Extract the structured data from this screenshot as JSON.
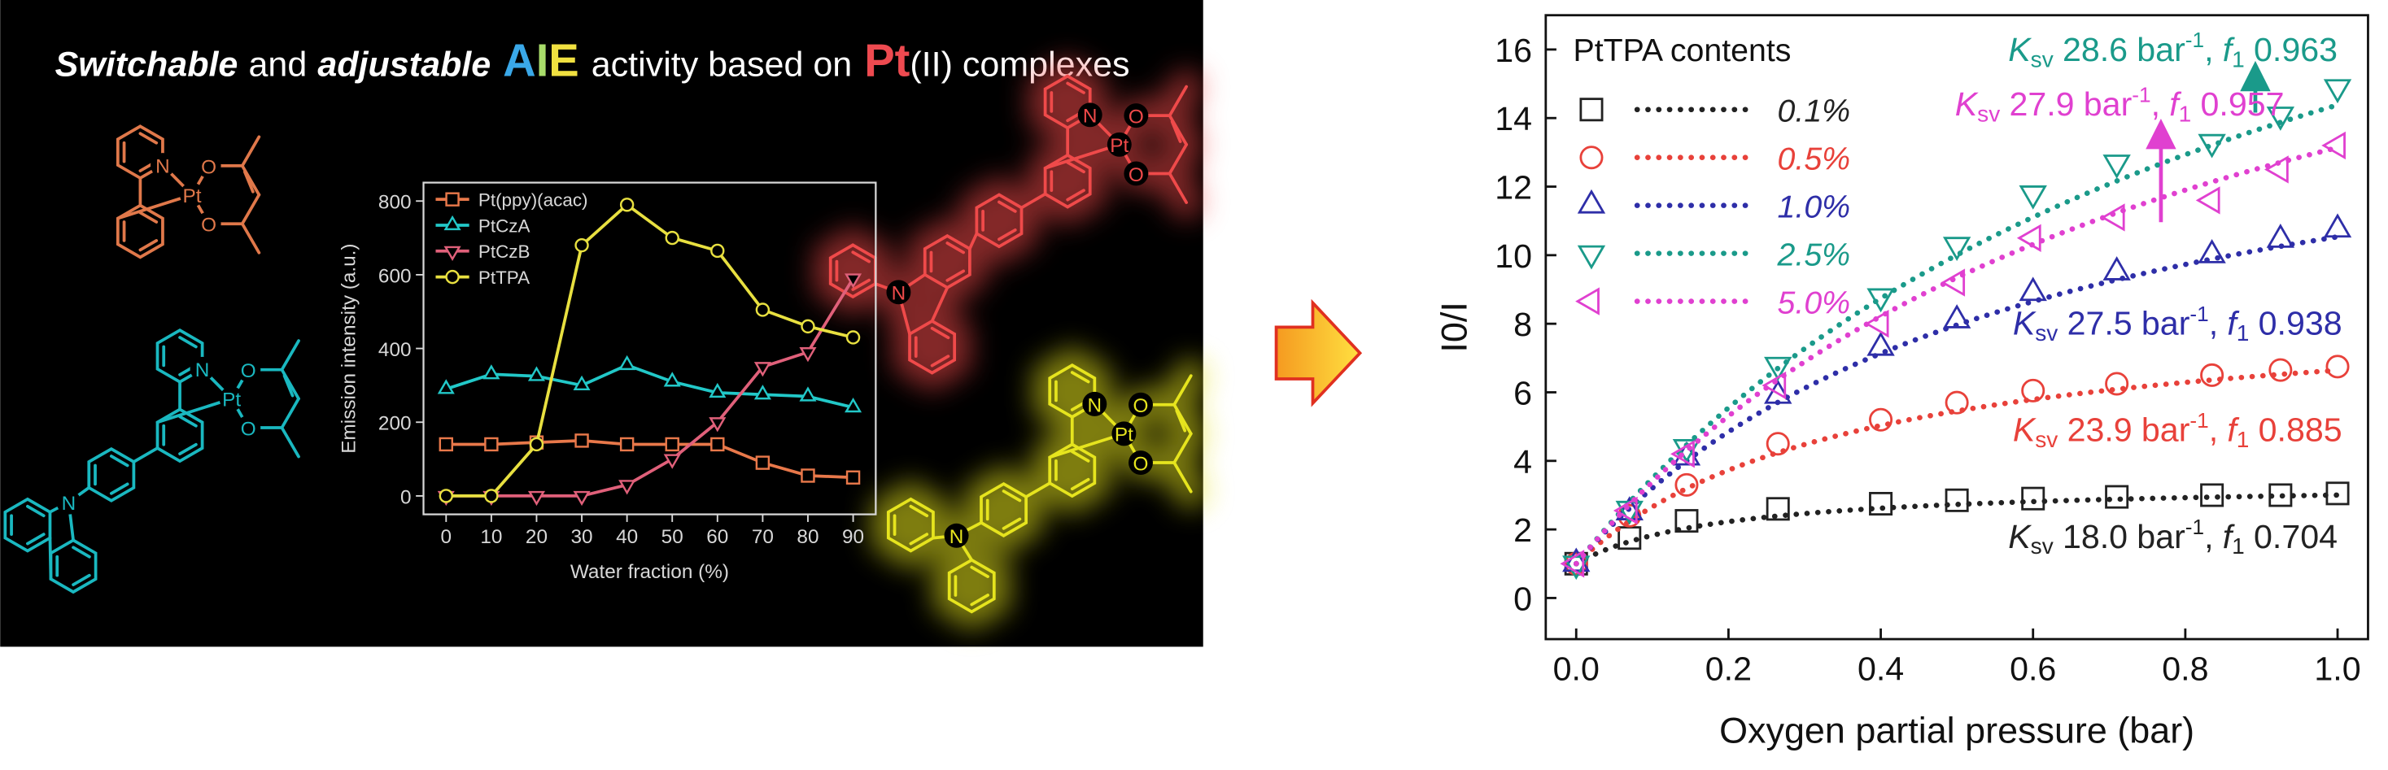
{
  "panel_title": [
    {
      "text": "Switchable",
      "style": "italic-bold"
    },
    {
      "text": "and"
    },
    {
      "text": "adjustable",
      "style": "italic-bold"
    },
    {
      "text": "A",
      "color": "#3aa8e8",
      "size": "large"
    },
    {
      "text": "I",
      "color": "#a8dc6a",
      "size": "large"
    },
    {
      "text": "E",
      "color": "#f0e040",
      "size": "large"
    },
    {
      "text": "activity based on"
    },
    {
      "text": "Pt",
      "color": "#ee4a50",
      "size": "large"
    },
    {
      "text": "(II) complexes"
    }
  ],
  "structures": [
    {
      "color": "#e0784a",
      "glow": false,
      "atoms": [
        "N",
        "Pt",
        "O",
        "O"
      ]
    },
    {
      "color": "#1ab8c0",
      "glow": false,
      "atoms": [
        "N",
        "Pt",
        "O",
        "O",
        "N"
      ]
    },
    {
      "color": "#ef4a4a",
      "glow": true,
      "atoms": [
        "N",
        "Pt",
        "O",
        "O",
        "N"
      ]
    },
    {
      "color": "#e6e41e",
      "glow": true,
      "atoms": [
        "N",
        "Pt",
        "O",
        "O",
        "N"
      ]
    }
  ],
  "chart_data": [
    {
      "type": "line",
      "x_label": "Water fraction (%)",
      "y_label": "Emission intensity (a.u.)",
      "x": [
        0,
        10,
        20,
        30,
        40,
        50,
        60,
        70,
        80,
        90
      ],
      "xlim": [
        -5,
        95
      ],
      "xticks": [
        0,
        10,
        20,
        30,
        40,
        50,
        60,
        70,
        80,
        90
      ],
      "ylim": [
        -50,
        850
      ],
      "yticks": [
        0,
        200,
        400,
        600,
        800
      ],
      "series": [
        {
          "name": "Pt(ppy)(acac)",
          "color": "#e8784a",
          "marker": "square",
          "values": [
            140,
            140,
            145,
            150,
            140,
            140,
            140,
            90,
            55,
            50
          ]
        },
        {
          "name": "PtCzA",
          "color": "#22c8c8",
          "marker": "triangle-up",
          "values": [
            290,
            330,
            325,
            300,
            355,
            310,
            280,
            275,
            270,
            240
          ]
        },
        {
          "name": "PtCzB",
          "color": "#e0607a",
          "marker": "triangle-down",
          "values": [
            0,
            0,
            0,
            0,
            30,
            100,
            200,
            350,
            390,
            590
          ]
        },
        {
          "name": "PtTPA",
          "color": "#e8e040",
          "marker": "circle",
          "values": [
            0,
            0,
            140,
            680,
            790,
            700,
            665,
            505,
            460,
            430
          ]
        }
      ]
    },
    {
      "type": "scatter",
      "x_label": "Oxygen partial pressure (bar)",
      "y_label": "I0/I",
      "legend_title": "PtTPA contents",
      "x": [
        0,
        0.07,
        0.145,
        0.265,
        0.4,
        0.5,
        0.6,
        0.71,
        0.835,
        0.925,
        1.0
      ],
      "xlim": [
        -0.04,
        1.04
      ],
      "xticks": [
        {
          "value": 0,
          "label": "0.0"
        },
        0.2,
        0.4,
        0.6,
        0.8,
        {
          "value": 1,
          "label": "1.0"
        }
      ],
      "ylim": [
        -1.2,
        17
      ],
      "yticks": [
        0,
        2,
        4,
        6,
        8,
        10,
        12,
        14,
        16
      ],
      "annotation_labels": {
        "k": "K",
        "k_sub": "sv",
        "unit": "bar",
        "unit_sup": "-1",
        "sep": ",",
        "f": "f",
        "f_sub": "1"
      },
      "series": [
        {
          "name": "0.1%",
          "color": "#222222",
          "marker": "square",
          "values": [
            1.0,
            1.75,
            2.25,
            2.6,
            2.75,
            2.85,
            2.9,
            2.95,
            3.0,
            3.0,
            3.05
          ],
          "ksv": {
            "value": 18,
            "label": "18.0"
          },
          "f1": 0.704
        },
        {
          "name": "0.5%",
          "color": "#e8413a",
          "marker": "circle",
          "values": [
            1.0,
            2.4,
            3.3,
            4.5,
            5.2,
            5.7,
            6.05,
            6.25,
            6.5,
            6.65,
            6.75
          ],
          "ksv": 23.9,
          "f1": 0.885
        },
        {
          "name": "1.0%",
          "color": "#2e2ea8",
          "marker": "triangle-up",
          "values": [
            1.0,
            2.5,
            4.1,
            5.9,
            7.3,
            8.1,
            8.9,
            9.5,
            10.0,
            10.45,
            10.75
          ],
          "ksv": 27.5,
          "f1": 0.938
        },
        {
          "name": "2.5%",
          "color": "#1a9a8a",
          "marker": "triangle-down",
          "values": [
            1.0,
            2.6,
            4.4,
            6.8,
            8.8,
            10.3,
            11.8,
            12.7,
            13.3,
            14.1,
            14.9
          ],
          "ksv": 28.6,
          "f1": 0.963
        },
        {
          "name": "5.0%",
          "color": "#e040d0",
          "marker": "triangle-left",
          "values": [
            1.0,
            2.55,
            4.2,
            6.2,
            8.0,
            9.2,
            10.5,
            11.1,
            11.6,
            12.5,
            13.2
          ],
          "ksv": 27.9,
          "f1": 0.957
        }
      ]
    }
  ]
}
